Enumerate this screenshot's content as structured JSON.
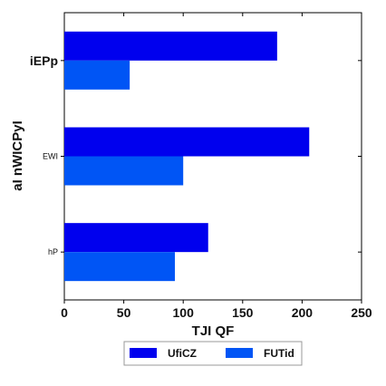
{
  "chart_data": {
    "type": "bar",
    "orientation": "horizontal",
    "categories": [
      "iEPp",
      "EWI",
      "hP"
    ],
    "series": [
      {
        "name": "UfiCZ",
        "values": [
          179,
          206,
          121
        ],
        "color": "#0000ee"
      },
      {
        "name": "FUTid",
        "values": [
          55,
          100,
          93
        ],
        "color": "#0055f5"
      }
    ],
    "xlabel": "TJI QF",
    "ylabel": "aI nWICPyI",
    "xlim": [
      0,
      250
    ],
    "xticks": [
      "0",
      "50",
      "100",
      "150",
      "200",
      "250"
    ],
    "grid": false,
    "legend": "bottom-center"
  }
}
